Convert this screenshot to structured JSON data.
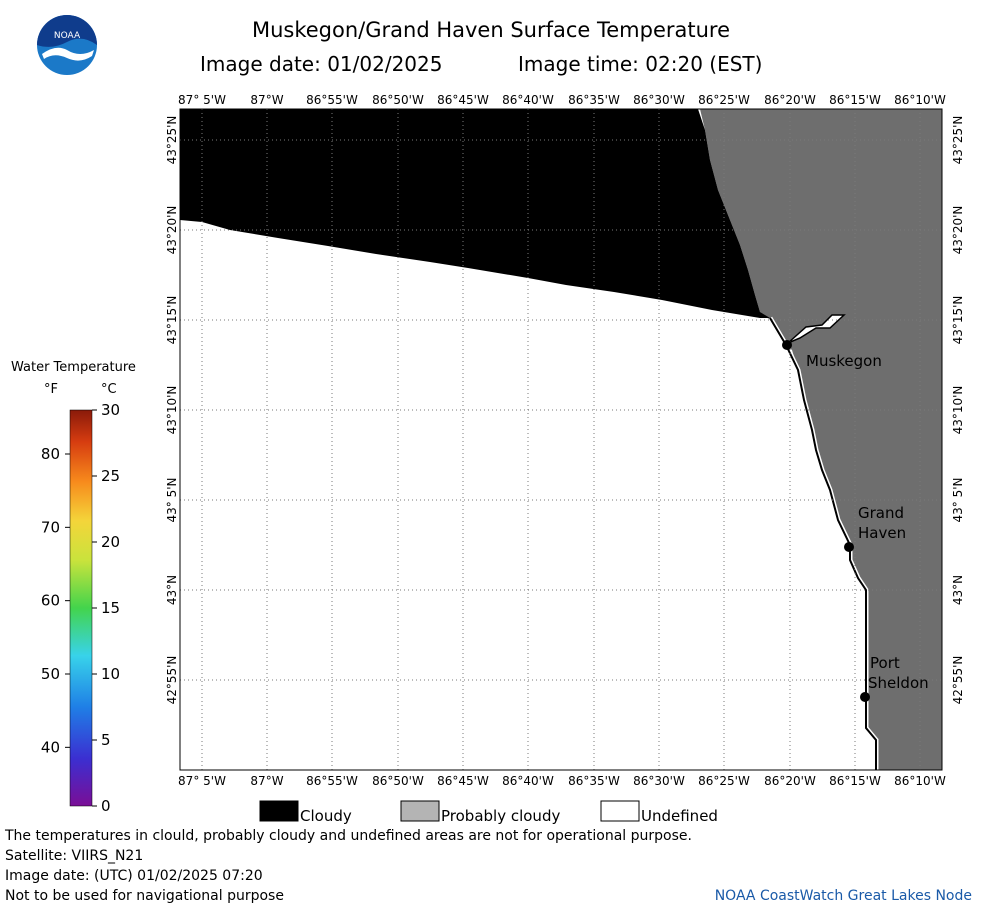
{
  "header": {
    "title": "Muskegon/Grand Haven Surface Temperature",
    "image_date": "Image date: 01/02/2025",
    "image_time": "Image time: 02:20 (EST)"
  },
  "logo": {
    "icon": "noaa-logo-icon",
    "text": "NOAA"
  },
  "axes": {
    "lon_labels": [
      "87° 5'W",
      "87°W",
      "86°55'W",
      "86°50'W",
      "86°45'W",
      "86°40'W",
      "86°35'W",
      "86°30'W",
      "86°25'W",
      "86°20'W",
      "86°15'W",
      "86°10'W"
    ],
    "lat_labels": [
      "43°25'N",
      "43°20'N",
      "43°15'N",
      "43°10'N",
      "43° 5'N",
      "43°N",
      "42°55'N"
    ]
  },
  "places": [
    {
      "lines": [
        "Muskegon"
      ]
    },
    {
      "lines": [
        "Grand",
        "Haven"
      ]
    },
    {
      "lines": [
        "Port",
        "Sheldon"
      ]
    }
  ],
  "legend": {
    "title": "Water Temperature",
    "unit_f": "°F",
    "unit_c": "°C",
    "f_ticks": [
      "80",
      "70",
      "60",
      "50",
      "40"
    ],
    "c_ticks": [
      "30",
      "25",
      "20",
      "15",
      "10",
      "5",
      "0"
    ]
  },
  "key": {
    "cloudy": "Cloudy",
    "probably_cloudy": "Probably cloudy",
    "undefined": "Undefined",
    "cloudy_color": "#000000",
    "probably_cloudy_color": "#b4b4b4",
    "undefined_color": "#ffffff",
    "land_color": "#6e6e6e"
  },
  "footer": {
    "note": "The temperatures in clould, probably cloudy and undefined areas are not for operational purpose.",
    "satellite": "Satellite: VIIRS_N21",
    "utc_date": "Image date: (UTC) 01/02/2025  07:20",
    "nav": "Not to be used for navigational purpose",
    "credit": "NOAA CoastWatch Great Lakes Node"
  }
}
